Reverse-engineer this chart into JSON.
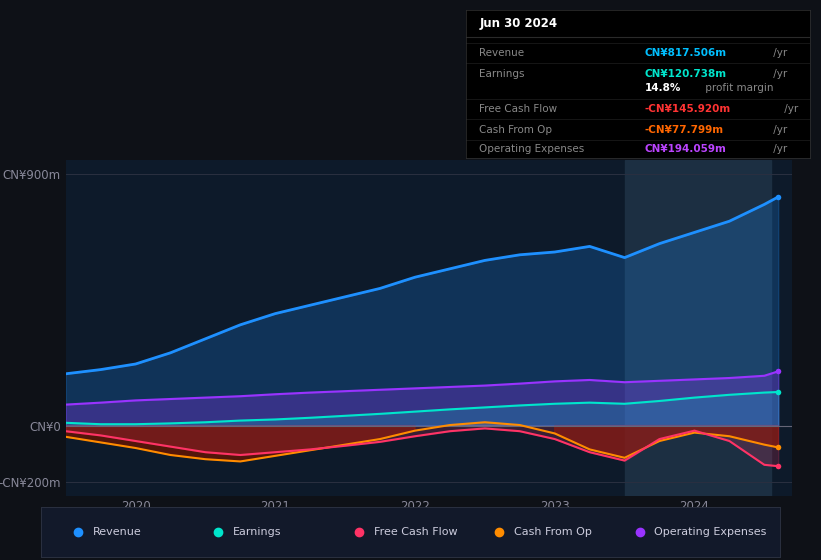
{
  "bg_color": "#0e1117",
  "plot_bg_color": "#0d1a2a",
  "title_box": {
    "date": "Jun 30 2024",
    "rows": [
      {
        "label": "Revenue",
        "value": "CN¥817.506m",
        "suffix": " /yr",
        "value_color": "#00bfff"
      },
      {
        "label": "Earnings",
        "value": "CN¥120.738m",
        "suffix": " /yr",
        "value_color": "#00e5cc"
      },
      {
        "label": "",
        "value": "14.8%",
        "suffix": " profit margin",
        "value_color": "#ffffff"
      },
      {
        "label": "Free Cash Flow",
        "value": "-CN¥145.920m",
        "suffix": " /yr",
        "value_color": "#ff3333"
      },
      {
        "label": "Cash From Op",
        "value": "-CN¥77.799m",
        "suffix": " /yr",
        "value_color": "#ff6600"
      },
      {
        "label": "Operating Expenses",
        "value": "CN¥194.059m",
        "suffix": " /yr",
        "value_color": "#bb44ff"
      }
    ]
  },
  "x_years": [
    2019.5,
    2019.75,
    2020.0,
    2020.25,
    2020.5,
    2020.75,
    2021.0,
    2021.25,
    2021.5,
    2021.75,
    2022.0,
    2022.25,
    2022.5,
    2022.75,
    2023.0,
    2023.25,
    2023.5,
    2023.75,
    2024.0,
    2024.25,
    2024.5,
    2024.6
  ],
  "revenue": [
    185,
    200,
    220,
    260,
    310,
    360,
    400,
    430,
    460,
    490,
    530,
    560,
    590,
    610,
    620,
    640,
    600,
    650,
    690,
    730,
    790,
    817
  ],
  "earnings": [
    10,
    5,
    5,
    8,
    12,
    18,
    22,
    28,
    35,
    42,
    50,
    58,
    65,
    72,
    78,
    82,
    78,
    88,
    100,
    110,
    118,
    120
  ],
  "free_cash_flow": [
    -20,
    -35,
    -55,
    -75,
    -95,
    -105,
    -95,
    -85,
    -72,
    -58,
    -38,
    -20,
    -10,
    -20,
    -48,
    -95,
    -125,
    -48,
    -18,
    -55,
    -140,
    -145
  ],
  "cash_from_op": [
    -40,
    -60,
    -80,
    -105,
    -120,
    -128,
    -108,
    -88,
    -68,
    -48,
    -18,
    2,
    12,
    2,
    -28,
    -85,
    -115,
    -55,
    -25,
    -38,
    -68,
    -78
  ],
  "op_expenses": [
    75,
    82,
    90,
    95,
    100,
    105,
    112,
    118,
    123,
    128,
    133,
    138,
    143,
    150,
    158,
    163,
    155,
    160,
    165,
    170,
    178,
    194
  ],
  "highlight_x_start": 2023.5,
  "highlight_x_end": 2024.55,
  "ylim": [
    -250,
    950
  ],
  "yticks": [
    -200,
    0,
    900
  ],
  "ytick_labels": [
    "-CN¥200m",
    "CN¥0",
    "CN¥900m"
  ],
  "xticks": [
    2020,
    2021,
    2022,
    2023,
    2024
  ],
  "xlim": [
    2019.5,
    2024.7
  ],
  "revenue_color": "#1e90ff",
  "earnings_color": "#00e5cc",
  "fcf_color": "#ff3366",
  "cfop_color": "#ff8c00",
  "opex_color": "#9933ff",
  "legend_items": [
    {
      "label": "Revenue",
      "color": "#1e90ff"
    },
    {
      "label": "Earnings",
      "color": "#00e5cc"
    },
    {
      "label": "Free Cash Flow",
      "color": "#ff3366"
    },
    {
      "label": "Cash From Op",
      "color": "#ff8c00"
    },
    {
      "label": "Operating Expenses",
      "color": "#9933ff"
    }
  ]
}
